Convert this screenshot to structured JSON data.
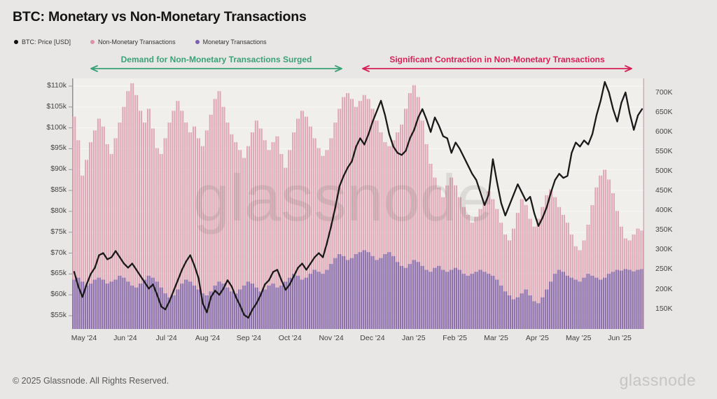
{
  "title": "BTC: Monetary vs Non-Monetary Transactions",
  "legend": {
    "items": [
      {
        "label": "BTC: Price [USD]",
        "color": "#111111"
      },
      {
        "label": "Non-Monetary Transactions",
        "color": "#dd93a7"
      },
      {
        "label": "Monetary Transactions",
        "color": "#7b5fb0"
      }
    ]
  },
  "annotations": {
    "left": {
      "text": "Demand for Non-Monetary Transactions Surged",
      "color": "#3aa277"
    },
    "right": {
      "text": "Significant Contraction in Non-Monetary Transactions",
      "color": "#d62057"
    }
  },
  "watermark_text": "glassnode",
  "footer": {
    "copyright": "© 2025 Glassnode. All Rights Reserved.",
    "logo": "glassnode"
  },
  "chart_data": {
    "type": "mixed",
    "subtypes": [
      "line",
      "bar",
      "bar"
    ],
    "x_labels": [
      "May '24",
      "Jun '24",
      "Jul '24",
      "Aug '24",
      "Sep '24",
      "Oct '24",
      "Nov '24",
      "Dec '24",
      "Jan '25",
      "Feb '25",
      "Mar '25",
      "Apr '25",
      "May '25",
      "Jun '25"
    ],
    "samples_per_month": 10,
    "note": "values sampled ~every 3 days, May 2024 - late Jun 2025",
    "left_axis": {
      "unit": "USD thousands",
      "min_k": 55,
      "max_k": 110,
      "tick_values_k": [
        110,
        105,
        100,
        95,
        90,
        85,
        80,
        75,
        70,
        65,
        60,
        55
      ],
      "ticks": [
        "$110k",
        "$105k",
        "$100k",
        "$95k",
        "$90k",
        "$85k",
        "$80k",
        "$75k",
        "$70k",
        "$65k",
        "$60k",
        "$55k"
      ]
    },
    "right_axis": {
      "unit": "transactions (thousands)",
      "min_k": 150,
      "max_k": 700,
      "tick_values_k": [
        700,
        650,
        600,
        550,
        500,
        450,
        400,
        350,
        300,
        250,
        200,
        150
      ],
      "ticks": [
        "700K",
        "650K",
        "600K",
        "550K",
        "500K",
        "450K",
        "400K",
        "350K",
        "300K",
        "250K",
        "200K",
        "150K"
      ]
    },
    "grid": "horizontal",
    "legend_position": "top-left",
    "series": [
      {
        "name": "BTC: Price [USD]",
        "type": "line",
        "axis": "left",
        "color": "#191919",
        "values_usd_k": [
          65.5,
          62,
          59.5,
          62.5,
          65,
          66.5,
          69.5,
          70,
          68.5,
          69,
          70.5,
          69,
          67.5,
          66.5,
          67.5,
          66,
          64.5,
          63,
          61.5,
          62.5,
          60,
          57.2,
          56.5,
          58.5,
          61,
          63.5,
          66,
          68,
          69.5,
          67,
          64,
          58,
          55.8,
          59.5,
          61,
          60,
          61.5,
          63.5,
          62,
          59.5,
          57.5,
          55.2,
          54.5,
          56.5,
          58,
          60,
          62.5,
          63.5,
          65.5,
          66,
          63.5,
          61.2,
          62.5,
          64.5,
          66.5,
          67.5,
          66,
          67.5,
          69,
          70,
          69,
          72.5,
          76.5,
          81,
          86,
          88.5,
          90.5,
          92,
          95.5,
          97.5,
          96,
          98.5,
          101.5,
          104,
          106.5,
          103,
          98.5,
          95.5,
          94,
          93.5,
          94.5,
          97.5,
          99.5,
          102.5,
          104.5,
          102,
          99,
          102.5,
          100.5,
          98,
          97.5,
          94,
          96.5,
          95,
          93,
          91,
          89,
          87.5,
          84.5,
          81.5,
          84,
          92.5,
          87,
          82,
          79,
          81.5,
          84,
          86.5,
          84.5,
          82.5,
          83.5,
          79.5,
          76.5,
          78.5,
          81,
          84.5,
          87.5,
          89,
          88,
          88.5,
          94,
          96.5,
          95.5,
          97,
          96,
          98.5,
          103,
          106.5,
          111,
          108.5,
          104.5,
          101.5,
          106,
          108.5,
          103.5,
          99.5,
          103,
          104.5
        ]
      },
      {
        "name": "Non-Monetary Transactions",
        "type": "bar",
        "axis": "right",
        "color": "#dfa6b6",
        "values_k": [
          640,
          580,
          490,
          530,
          575,
          605,
          635,
          615,
          570,
          545,
          585,
          625,
          665,
          705,
          725,
          695,
          655,
          625,
          660,
          610,
          560,
          545,
          585,
          625,
          655,
          680,
          655,
          625,
          600,
          615,
          585,
          565,
          605,
          645,
          685,
          705,
          665,
          625,
          595,
          575,
          555,
          535,
          565,
          600,
          630,
          610,
          580,
          555,
          575,
          590,
          545,
          510,
          555,
          600,
          635,
          655,
          640,
          615,
          585,
          560,
          540,
          555,
          585,
          625,
          660,
          690,
          700,
          685,
          665,
          680,
          695,
          685,
          660,
          630,
          600,
          575,
          565,
          580,
          600,
          620,
          660,
          700,
          720,
          690,
          630,
          570,
          520,
          485,
          460,
          435,
          465,
          485,
          465,
          435,
          410,
          390,
          370,
          385,
          405,
          425,
          450,
          430,
          405,
          370,
          340,
          325,
          355,
          395,
          430,
          415,
          380,
          360,
          380,
          410,
          440,
          455,
          435,
          410,
          390,
          370,
          340,
          310,
          300,
          325,
          365,
          415,
          460,
          490,
          505,
          480,
          445,
          400,
          360,
          330,
          325,
          340,
          355,
          350
        ]
      },
      {
        "name": "Monetary Transactions",
        "type": "bar",
        "axis": "right",
        "color": "#8e70ad",
        "values_k": [
          225,
          230,
          220,
          210,
          215,
          225,
          230,
          225,
          215,
          220,
          225,
          235,
          230,
          220,
          210,
          205,
          215,
          225,
          235,
          230,
          220,
          205,
          190,
          180,
          185,
          200,
          215,
          225,
          220,
          210,
          200,
          190,
          185,
          195,
          210,
          220,
          215,
          205,
          195,
          190,
          200,
          210,
          220,
          215,
          205,
          195,
          200,
          210,
          215,
          205,
          210,
          220,
          230,
          240,
          235,
          225,
          230,
          240,
          250,
          245,
          240,
          250,
          265,
          280,
          290,
          285,
          275,
          280,
          290,
          295,
          300,
          295,
          285,
          275,
          280,
          290,
          295,
          285,
          270,
          260,
          255,
          265,
          275,
          270,
          260,
          250,
          245,
          255,
          260,
          250,
          245,
          250,
          255,
          250,
          240,
          235,
          240,
          245,
          250,
          245,
          240,
          235,
          225,
          210,
          195,
          185,
          175,
          180,
          190,
          200,
          185,
          170,
          165,
          180,
          200,
          220,
          240,
          250,
          245,
          235,
          230,
          225,
          220,
          230,
          240,
          235,
          230,
          225,
          230,
          240,
          245,
          250,
          248,
          252,
          250,
          246,
          250,
          252
        ]
      }
    ]
  }
}
